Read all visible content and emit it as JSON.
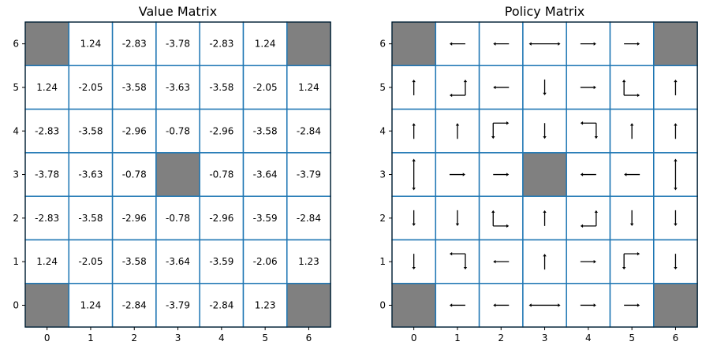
{
  "chart_data": [
    {
      "type": "heatmap",
      "title": "Value Matrix",
      "x_ticks": [
        "0",
        "1",
        "2",
        "3",
        "4",
        "5",
        "6"
      ],
      "y_ticks": [
        "0",
        "1",
        "2",
        "3",
        "4",
        "5",
        "6"
      ],
      "values_by_row_from_top": [
        [
          null,
          "1.24",
          "-2.83",
          "-3.78",
          "-2.83",
          "1.24",
          null
        ],
        [
          "1.24",
          "-2.05",
          "-3.58",
          "-3.63",
          "-3.58",
          "-2.05",
          "1.24"
        ],
        [
          "-2.83",
          "-3.58",
          "-2.96",
          "-0.78",
          "-2.96",
          "-3.58",
          "-2.84"
        ],
        [
          "-3.78",
          "-3.63",
          "-0.78",
          null,
          "-0.78",
          "-3.64",
          "-3.79"
        ],
        [
          "-2.83",
          "-3.58",
          "-2.96",
          "-0.78",
          "-2.96",
          "-3.59",
          "-2.84"
        ],
        [
          "1.24",
          "-2.05",
          "-3.58",
          "-3.64",
          "-3.59",
          "-2.06",
          "1.23"
        ],
        [
          null,
          "1.24",
          "-2.84",
          "-3.79",
          "-2.84",
          "1.23",
          null
        ]
      ],
      "blocked_color": "#808080",
      "grid_color": "#1f77b4"
    },
    {
      "type": "heatmap",
      "title": "Policy Matrix",
      "x_ticks": [
        "0",
        "1",
        "2",
        "3",
        "4",
        "5",
        "6"
      ],
      "y_ticks": [
        "0",
        "1",
        "2",
        "3",
        "4",
        "5",
        "6"
      ],
      "policy_by_row_from_top": [
        [
          null,
          [
            "left"
          ],
          [
            "left"
          ],
          [
            "left",
            "right"
          ],
          [
            "right"
          ],
          [
            "right"
          ],
          null
        ],
        [
          [
            "up"
          ],
          [
            "left",
            "up"
          ],
          [
            "left"
          ],
          [
            "down"
          ],
          [
            "right"
          ],
          [
            "up",
            "right"
          ],
          [
            "up"
          ]
        ],
        [
          [
            "up"
          ],
          [
            "up"
          ],
          [
            "down",
            "right"
          ],
          [
            "down"
          ],
          [
            "left",
            "down"
          ],
          [
            "up"
          ],
          [
            "up"
          ]
        ],
        [
          [
            "up",
            "down"
          ],
          [
            "right"
          ],
          [
            "right"
          ],
          null,
          [
            "left"
          ],
          [
            "left"
          ],
          [
            "up",
            "down"
          ]
        ],
        [
          [
            "down"
          ],
          [
            "down"
          ],
          [
            "up",
            "right"
          ],
          [
            "up"
          ],
          [
            "left",
            "up"
          ],
          [
            "down"
          ],
          [
            "down"
          ]
        ],
        [
          [
            "down"
          ],
          [
            "left",
            "down"
          ],
          [
            "left"
          ],
          [
            "up"
          ],
          [
            "right"
          ],
          [
            "down",
            "right"
          ],
          [
            "down"
          ]
        ],
        [
          null,
          [
            "left"
          ],
          [
            "left"
          ],
          [
            "left",
            "right"
          ],
          [
            "right"
          ],
          [
            "right"
          ],
          null
        ]
      ],
      "blocked_color": "#808080",
      "grid_color": "#1f77b4"
    }
  ]
}
